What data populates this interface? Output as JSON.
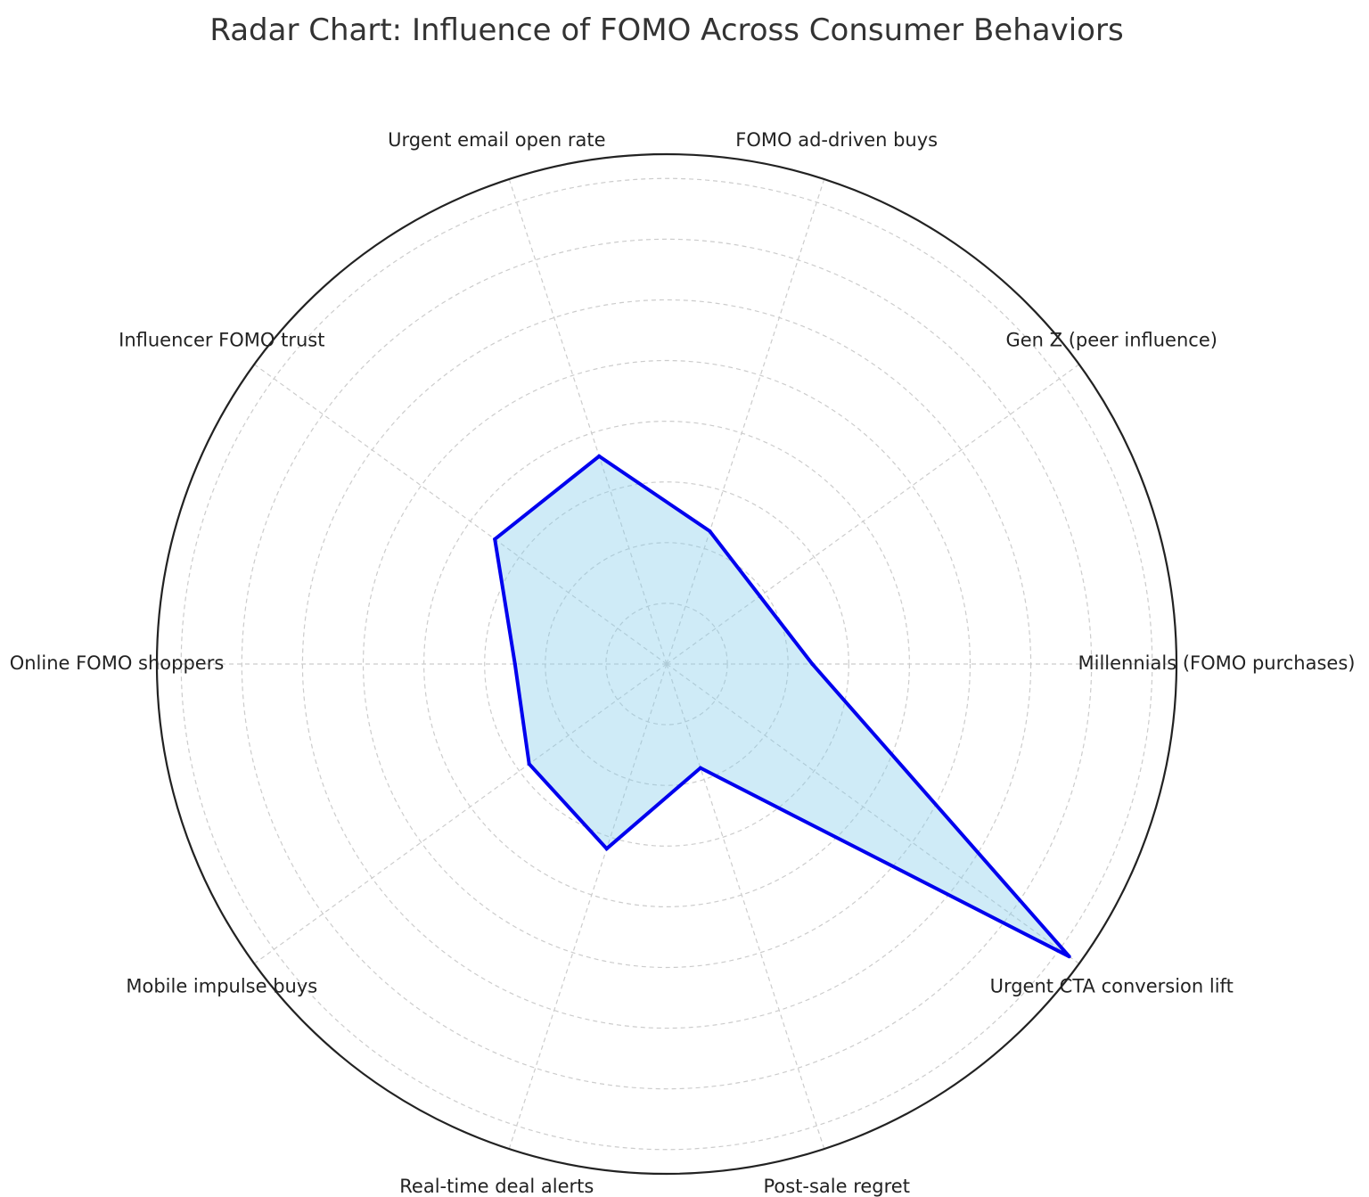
{
  "chart_data": {
    "type": "radar",
    "title": "Radar Chart: Influence of FOMO Across Consumer Behaviors",
    "categories": [
      "Millennials (FOMO purchases)",
      "Gen Z (peer influence)",
      "FOMO ad-driven buys",
      "Urgent email open rate",
      "Influencer FOMO trust",
      "Online FOMO shoppers",
      "Mobile impulse buys",
      "Real-time deal alerts",
      "Post-sale regret",
      "Urgent CTA conversion lift"
    ],
    "series": [
      {
        "values": [
          24,
          19,
          23,
          36,
          35,
          25,
          28,
          32,
          18,
          82
        ]
      }
    ],
    "rlim": [
      0,
      84
    ],
    "r_gridlines": [
      10,
      20,
      30,
      40,
      50,
      60,
      70,
      80
    ],
    "grid": true,
    "tick_labels_radial": false,
    "colors": {
      "line": "#0000ee",
      "fill": "#87ceeb",
      "grid": "#cccccc",
      "outer": "#222222"
    }
  }
}
